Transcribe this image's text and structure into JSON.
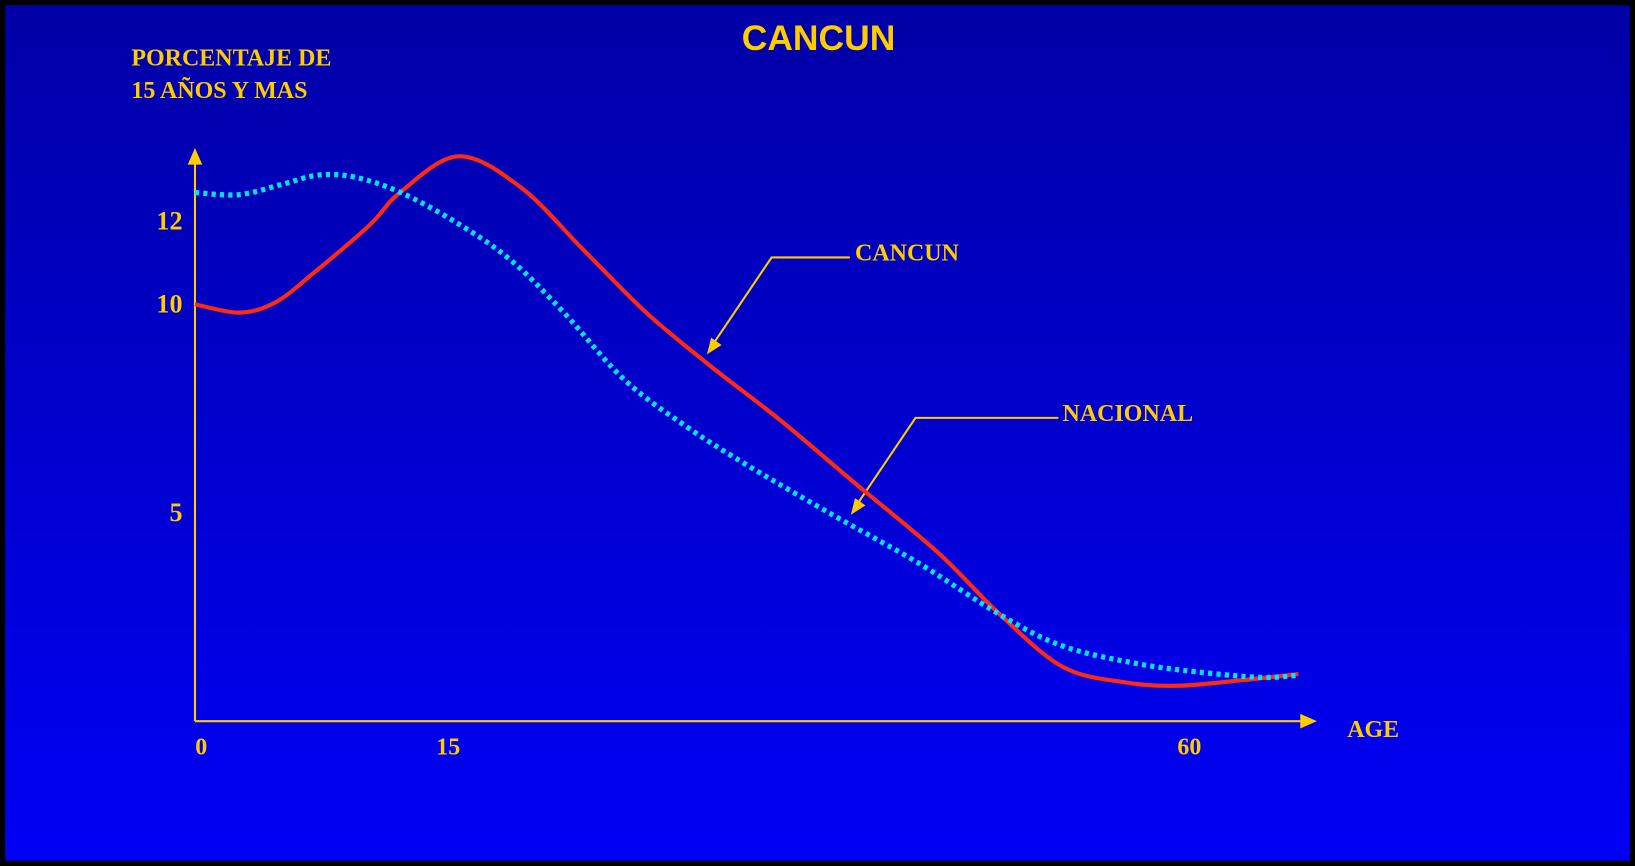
{
  "chart_data": {
    "type": "line",
    "title": "CANCUN",
    "y_label": [
      "PORCENTAJE DE",
      "15 AÑOS Y MAS"
    ],
    "x_label": "AGE",
    "xlim": [
      0,
      68
    ],
    "ylim": [
      0,
      13.7
    ],
    "xticks": [
      0,
      15,
      60
    ],
    "yticks": [
      5,
      10,
      12
    ],
    "grid": false,
    "series": [
      {
        "name": "CANCUN",
        "color": "#ff2a10",
        "style": "solid",
        "x": [
          0,
          2.7,
          4.9,
          7.2,
          10.6,
          12.5,
          16.0,
          19.8,
          23.6,
          27.4,
          31.2,
          35.6,
          40.1,
          45.1,
          48.9,
          52.7,
          56.5,
          59.7,
          63.5,
          67.0
        ],
        "values": [
          10.0,
          9.8,
          10.05,
          10.75,
          11.9,
          12.7,
          13.55,
          12.8,
          11.3,
          9.8,
          8.55,
          7.2,
          5.7,
          4.05,
          2.55,
          1.3,
          0.93,
          0.85,
          0.98,
          1.13
        ]
      },
      {
        "name": "NACIONAL",
        "color": "#00e5ff",
        "style": "dotted",
        "x": [
          0,
          2.7,
          5.3,
          7.5,
          9.7,
          12.5,
          16.0,
          19.2,
          22.4,
          26.1,
          29.9,
          33.7,
          38.8,
          43.9,
          48.9,
          52.7,
          57.2,
          60.9,
          64.7,
          67.0
        ],
        "values": [
          12.68,
          12.63,
          12.88,
          13.1,
          13.05,
          12.68,
          11.93,
          11.05,
          9.8,
          8.18,
          7.05,
          6.1,
          4.93,
          3.8,
          2.55,
          1.8,
          1.38,
          1.18,
          1.05,
          1.1
        ]
      }
    ]
  }
}
